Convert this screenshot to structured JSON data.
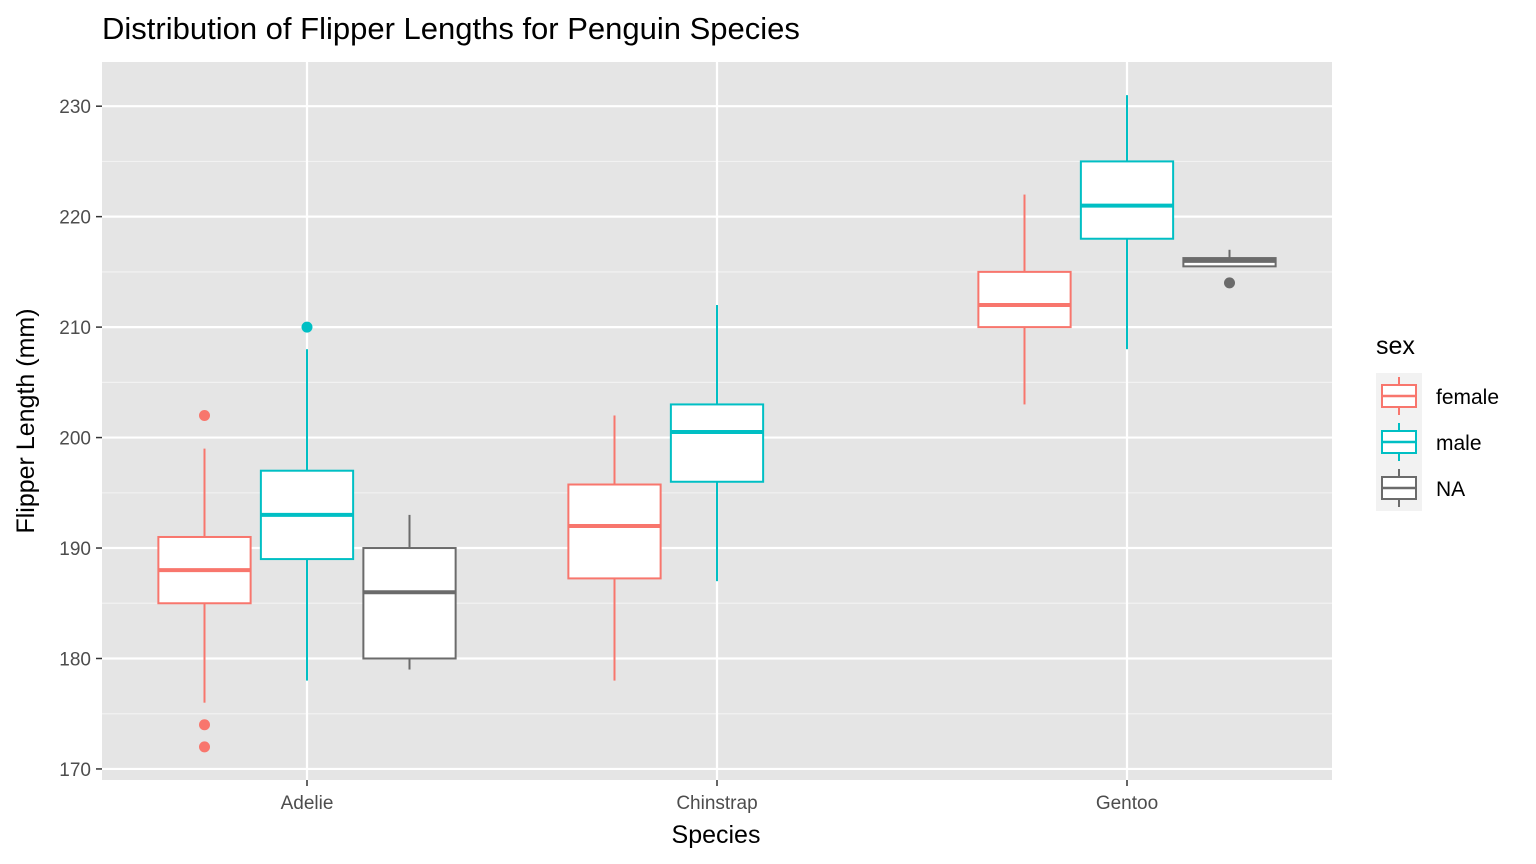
{
  "chart_data": {
    "type": "boxplot",
    "title": "Distribution of Flipper Lengths for Penguin Species",
    "xlabel": "Species",
    "ylabel": "Flipper Length (mm)",
    "ylim": [
      169,
      234
    ],
    "y_ticks": [
      170,
      180,
      190,
      200,
      210,
      220,
      230
    ],
    "grid": true,
    "categories": [
      "Adelie",
      "Chinstrap",
      "Gentoo"
    ],
    "legend": {
      "title": "sex",
      "position": "right",
      "entries": [
        {
          "label": "female",
          "color": "#F8766D"
        },
        {
          "label": "male",
          "color": "#00BFC4"
        },
        {
          "label": "NA",
          "color": "#6B6B6B"
        }
      ]
    },
    "boxes": [
      {
        "category": "Adelie",
        "group": "female",
        "min": 176,
        "q1": 185,
        "median": 188,
        "q3": 191,
        "max": 199,
        "outliers": [
          202,
          174,
          172
        ]
      },
      {
        "category": "Adelie",
        "group": "male",
        "min": 178,
        "q1": 189,
        "median": 193,
        "q3": 197,
        "max": 208,
        "outliers": [
          210
        ]
      },
      {
        "category": "Adelie",
        "group": "NA",
        "min": 179,
        "q1": 180,
        "median": 186,
        "q3": 190,
        "max": 193,
        "outliers": []
      },
      {
        "category": "Chinstrap",
        "group": "female",
        "min": 178,
        "q1": 187.25,
        "median": 192,
        "q3": 195.75,
        "max": 202,
        "outliers": []
      },
      {
        "category": "Chinstrap",
        "group": "male",
        "min": 187,
        "q1": 196,
        "median": 200.5,
        "q3": 203,
        "max": 212,
        "outliers": []
      },
      {
        "category": "Gentoo",
        "group": "female",
        "min": 203,
        "q1": 210,
        "median": 212,
        "q3": 215,
        "max": 222,
        "outliers": []
      },
      {
        "category": "Gentoo",
        "group": "male",
        "min": 208,
        "q1": 218,
        "median": 221,
        "q3": 225,
        "max": 231,
        "outliers": []
      },
      {
        "category": "Gentoo",
        "group": "NA",
        "min": 215.5,
        "q1": 215.5,
        "median": 216,
        "q3": 216.25,
        "max": 217,
        "outliers": [
          214
        ]
      }
    ]
  }
}
